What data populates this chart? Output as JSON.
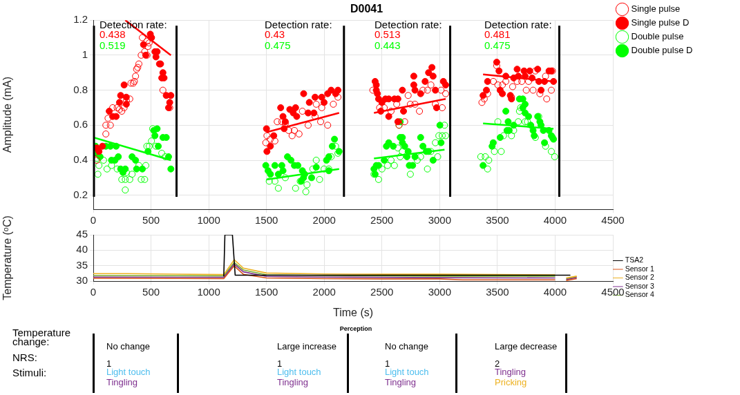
{
  "chart_data": [
    {
      "type": "scatter",
      "title": "D0041",
      "ylabel": "Amplitude (mA)",
      "xlim": [
        0,
        4500
      ],
      "xticks": [
        0,
        500,
        1000,
        1500,
        2000,
        2500,
        3000,
        3500,
        4000,
        4500
      ],
      "ylim": [
        0.12,
        1.2
      ],
      "yticks": [
        0.2,
        0.4,
        0.6,
        0.8,
        1,
        1.2
      ],
      "grid": true,
      "legend": "top right",
      "series": [
        {
          "name": "Single pulse",
          "color": "#ff0000",
          "marker": "circle",
          "x": [
            10,
            30,
            109,
            148,
            109,
            128,
            168,
            207,
            227,
            267,
            247,
            287,
            316,
            326,
            346,
            356,
            366,
            375,
            385,
            395,
            415,
            445,
            425,
            465,
            484,
            474,
            504,
            603,
            662,
            465,
            1494,
            1504,
            1534,
            1573,
            1593,
            1633,
            1663,
            1692,
            1722,
            1742,
            1782,
            1811,
            1861,
            1921,
            1969,
            2030,
            1931,
            2079,
            2119,
            1979,
            2421,
            2480,
            2520,
            2579,
            2628,
            2697,
            2727,
            2746,
            2786,
            2825,
            2855,
            2894,
            2924,
            2963,
            3012,
            3022,
            3052,
            2648,
            3366,
            3386,
            3415,
            3465,
            3494,
            3504,
            3543,
            3573,
            3632,
            3671,
            3711,
            3750,
            3770,
            3809,
            3868,
            3927,
            3917,
            3967,
            3977,
            3622,
            3829
          ],
          "values": [
            0.44,
            0.4,
            0.6,
            0.6,
            0.55,
            0.64,
            0.7,
            0.7,
            0.69,
            0.7,
            0.68,
            0.74,
            0.75,
            0.84,
            0.84,
            0.85,
            0.88,
            0.92,
            0.93,
            0.95,
            1.0,
            1.02,
            1.1,
            1.08,
            1.07,
            1.05,
            1.1,
            0.8,
            0.7,
            1.0,
            0.5,
            0.54,
            0.52,
            0.51,
            0.62,
            0.62,
            0.61,
            0.57,
            0.54,
            0.57,
            0.55,
            0.68,
            0.6,
            0.65,
            0.62,
            0.6,
            0.72,
            0.72,
            0.76,
            0.7,
            0.8,
            0.7,
            0.7,
            0.68,
            0.72,
            0.62,
            0.77,
            0.72,
            0.72,
            0.68,
            0.8,
            0.8,
            0.83,
            0.72,
            0.8,
            0.7,
            0.78,
            0.6,
            0.73,
            0.75,
            0.78,
            0.85,
            0.94,
            0.83,
            0.83,
            0.85,
            0.82,
            0.85,
            0.85,
            0.8,
            0.85,
            0.8,
            0.78,
            0.75,
            0.88,
            0.8,
            0.91,
            0.76,
            0.91
          ]
        },
        {
          "name": "Single pulse D",
          "color": "#ff0000",
          "marker": "circle",
          "x": [
            267,
            237,
            227,
            286,
            286,
            138,
            168,
            198,
            49,
            30,
            79,
            435,
            494,
            504,
            454,
            534,
            553,
            543,
            573,
            583,
            603,
            593,
            613,
            632,
            672,
            662,
            652,
            1500,
            1504,
            1534,
            1563,
            1623,
            1643,
            1663,
            1653,
            1702,
            1732,
            1752,
            1762,
            1822,
            1861,
            1871,
            1911,
            1921,
            1979,
            1999,
            2030,
            2060,
            2119,
            2099,
            2441,
            2451,
            2451,
            2461,
            2471,
            2500,
            2530,
            2559,
            2608,
            2638,
            2559,
            2490,
            2687,
            2677,
            2776,
            2776,
            2786,
            2835,
            2874,
            2904,
            2933,
            2943,
            2963,
            2973,
            3032,
            3052,
            2638,
            3376,
            3405,
            3415,
            3494,
            3514,
            3524,
            3543,
            3612,
            3622,
            3671,
            3681,
            3731,
            3740,
            3780,
            3800,
            3849,
            3859,
            3878,
            3908,
            3947,
            3967,
            3986,
            3573,
            3641
          ],
          "values": [
            0.83,
            0.77,
            0.73,
            0.76,
            0.72,
            0.68,
            0.65,
            0.65,
            0.45,
            0.47,
            0.48,
            1.06,
            1.12,
            1.1,
            1.0,
            1.02,
            1.02,
            0.99,
            0.95,
            0.95,
            0.9,
            0.87,
            0.87,
            0.77,
            0.77,
            0.73,
            0.7,
            0.58,
            0.45,
            0.48,
            0.54,
            0.7,
            0.65,
            0.62,
            0.58,
            0.69,
            0.67,
            0.7,
            0.65,
            0.78,
            0.67,
            0.73,
            0.67,
            0.76,
            0.76,
            0.73,
            0.78,
            0.8,
            0.8,
            0.78,
            0.85,
            0.83,
            0.8,
            0.78,
            0.75,
            0.73,
            0.75,
            0.75,
            0.75,
            0.75,
            0.65,
            0.68,
            0.68,
            0.8,
            0.83,
            0.88,
            0.8,
            0.78,
            0.85,
            0.9,
            0.93,
            0.88,
            0.8,
            0.7,
            0.85,
            0.83,
            0.62,
            0.77,
            0.8,
            0.85,
            0.96,
            0.91,
            0.8,
            0.78,
            0.77,
            0.75,
            0.92,
            0.88,
            0.91,
            0.88,
            0.91,
            0.87,
            0.92,
            0.85,
            0.8,
            0.85,
            0.91,
            0.91,
            0.85,
            0.88,
            0.87
          ]
        },
        {
          "name": "Double pulse",
          "color": "#00ff00",
          "marker": "circle",
          "x": [
            30,
            49,
            40,
            89,
            119,
            158,
            207,
            247,
            277,
            316,
            336,
            395,
            415,
            445,
            455,
            464,
            484,
            504,
            514,
            543,
            593,
            623,
            277,
            287,
            1524,
            1573,
            1603,
            1663,
            1752,
            1792,
            1841,
            1851,
            1901,
            1960,
            1999,
            2040,
            1931,
            2099,
            2119,
            2060,
            2431,
            2471,
            2500,
            2549,
            2579,
            2608,
            2638,
            2658,
            2677,
            2746,
            2806,
            2835,
            2894,
            2924,
            2963,
            2983,
            2993,
            3022,
            3052,
            3042,
            2648,
            3356,
            3395,
            3425,
            3415,
            3474,
            3533,
            3553,
            3622,
            3641,
            3681,
            3691,
            3701,
            3740,
            3760,
            3829,
            3858,
            3917,
            3967,
            3996,
            3504
          ],
          "values": [
            0.41,
            0.37,
            0.32,
            0.4,
            0.35,
            0.37,
            0.35,
            0.29,
            0.29,
            0.29,
            0.32,
            0.37,
            0.29,
            0.29,
            0.37,
            0.48,
            0.48,
            0.51,
            0.58,
            0.48,
            0.44,
            0.42,
            0.23,
            0.33,
            0.28,
            0.28,
            0.24,
            0.3,
            0.24,
            0.28,
            0.22,
            0.26,
            0.35,
            0.29,
            0.35,
            0.35,
            0.4,
            0.48,
            0.44,
            0.42,
            0.32,
            0.29,
            0.35,
            0.37,
            0.4,
            0.37,
            0.47,
            0.42,
            0.45,
            0.32,
            0.4,
            0.42,
            0.35,
            0.45,
            0.5,
            0.42,
            0.54,
            0.54,
            0.54,
            0.6,
            0.6,
            0.42,
            0.42,
            0.4,
            0.35,
            0.45,
            0.45,
            0.54,
            0.54,
            0.57,
            0.62,
            0.68,
            0.7,
            0.62,
            0.62,
            0.53,
            0.65,
            0.48,
            0.45,
            0.42,
            0.62
          ]
        },
        {
          "name": "Double pulse D",
          "color": "#00ff00",
          "marker": "circle",
          "x": [
            20,
            30,
            59,
            109,
            148,
            198,
            158,
            188,
            217,
            237,
            257,
            277,
            336,
            366,
            375,
            425,
            474,
            534,
            553,
            563,
            603,
            632,
            652,
            672,
            524,
            1494,
            1514,
            1534,
            1573,
            1603,
            1633,
            1643,
            1682,
            1712,
            1742,
            1772,
            1811,
            1831,
            1801,
            1821,
            1891,
            1931,
            2020,
            2040,
            2070,
            2089,
            2129,
            2040,
            2431,
            2441,
            2451,
            2471,
            2520,
            2539,
            2559,
            2598,
            2658,
            2677,
            2677,
            2697,
            2727,
            2717,
            2737,
            2766,
            2786,
            2835,
            2855,
            2884,
            2904,
            2943,
            3002,
            3012,
            2658,
            3376,
            3454,
            3464,
            3524,
            3573,
            3593,
            3583,
            3602,
            3691,
            3720,
            3740,
            3720,
            3740,
            3770,
            3789,
            3809,
            3819,
            3849,
            3868,
            3878,
            3898,
            3908,
            3947,
            3967,
            3977,
            3986,
            3641
          ],
          "values": [
            0.48,
            0.44,
            0.42,
            0.48,
            0.48,
            0.48,
            0.4,
            0.4,
            0.42,
            0.35,
            0.33,
            0.35,
            0.42,
            0.4,
            0.35,
            0.35,
            0.45,
            0.54,
            0.58,
            0.48,
            0.53,
            0.53,
            0.42,
            0.35,
            0.57,
            0.37,
            0.34,
            0.32,
            0.37,
            0.32,
            0.37,
            0.34,
            0.42,
            0.4,
            0.37,
            0.37,
            0.34,
            0.32,
            0.28,
            0.3,
            0.3,
            0.36,
            0.4,
            0.42,
            0.48,
            0.52,
            0.45,
            0.34,
            0.35,
            0.32,
            0.37,
            0.37,
            0.4,
            0.48,
            0.5,
            0.48,
            0.53,
            0.53,
            0.5,
            0.48,
            0.45,
            0.42,
            0.37,
            0.37,
            0.42,
            0.53,
            0.48,
            0.45,
            0.45,
            0.4,
            0.6,
            0.5,
            0.62,
            0.37,
            0.48,
            0.5,
            0.53,
            0.68,
            0.62,
            0.57,
            0.57,
            0.75,
            0.75,
            0.72,
            0.7,
            0.67,
            0.65,
            0.6,
            0.57,
            0.54,
            0.65,
            0.62,
            0.6,
            0.57,
            0.5,
            0.57,
            0.54,
            0.53,
            0.52,
            0.6
          ]
        },
        {
          "type": "line",
          "color": "#ff0000",
          "marker": "none",
          "x": [
            277,
            672
          ],
          "values": [
            1.2,
            1.0
          ]
        },
        {
          "type": "line",
          "color": "#00ff00",
          "marker": "none",
          "x": [
            0,
            672
          ],
          "values": [
            0.53,
            0.4
          ]
        },
        {
          "type": "line",
          "color": "#ff0000",
          "marker": "none",
          "x": [
            1500,
            2129
          ],
          "values": [
            0.56,
            0.67
          ]
        },
        {
          "type": "line",
          "color": "#00ff00",
          "marker": "none",
          "x": [
            1500,
            2129
          ],
          "values": [
            0.29,
            0.35
          ]
        },
        {
          "type": "line",
          "color": "#ff0000",
          "marker": "none",
          "x": [
            2431,
            3052
          ],
          "values": [
            0.67,
            0.75
          ]
        },
        {
          "type": "line",
          "color": "#00ff00",
          "marker": "none",
          "x": [
            2431,
            3042
          ],
          "values": [
            0.41,
            0.46
          ]
        },
        {
          "type": "line",
          "color": "#ff0000",
          "marker": "none",
          "x": [
            3376,
            3986
          ],
          "values": [
            0.89,
            0.85
          ]
        },
        {
          "type": "line",
          "color": "#00ff00",
          "marker": "none",
          "x": [
            3376,
            3986
          ],
          "values": [
            0.61,
            0.58
          ]
        }
      ],
      "ref_lines": [
        {
          "axis": "x",
          "value": 0,
          "color": "#000000"
        },
        {
          "axis": "x",
          "value": 715,
          "color": "#000000"
        },
        {
          "axis": "x",
          "value": 2165,
          "color": "#000000"
        },
        {
          "axis": "x",
          "value": 3085,
          "color": "#000000"
        },
        {
          "axis": "x",
          "value": 4030,
          "color": "#000000"
        }
      ],
      "annotations": [
        "Detection rate:",
        "0.438",
        "0.519",
        "Detection rate:",
        "0.43",
        "0.475",
        "Detection rate:",
        "0.513",
        "0.443",
        "Detection rate:",
        "0.481",
        "0.475"
      ]
    },
    {
      "type": "line",
      "xlabel": "Time (s)",
      "ylabel": "Temperature (ᵒC)",
      "xlim": [
        0,
        4500
      ],
      "xticks": [
        0,
        500,
        1000,
        1500,
        2000,
        2500,
        3000,
        3500,
        4000,
        4500
      ],
      "ylim": [
        30,
        45
      ],
      "yticks": [
        30,
        35,
        40,
        45
      ],
      "grid": true,
      "legend": "right",
      "marker": "none",
      "series": [
        {
          "name": "TSA2",
          "color": "#000000",
          "x": [
            1130,
            1140,
            1205,
            1229,
            4132
          ],
          "values": [
            31.5,
            45,
            45,
            31.9,
            31.9
          ]
        },
        {
          "name": "Sensor 1",
          "color": "#d95319",
          "x": [
            0,
            1130,
            1220,
            1300,
            1500,
            2000,
            2500,
            3000,
            3200,
            4000,
            4010,
            4096,
            4187
          ],
          "values": [
            30.9,
            30.8,
            34.9,
            32.2,
            31.0,
            30.8,
            30.7,
            30.7,
            30.4,
            30.4,
            null,
            30.2,
            30.8
          ]
        },
        {
          "name": "Sensor 2",
          "color": "#edb120",
          "x": [
            0,
            300,
            1130,
            1220,
            1300,
            1500,
            2000,
            2500,
            3000,
            4000,
            4010,
            4096,
            4187
          ],
          "values": [
            32.4,
            32.4,
            32.1,
            36.9,
            34.2,
            32.6,
            32.3,
            32.2,
            32.2,
            32.0,
            null,
            31.0,
            31.6
          ]
        },
        {
          "name": "Sensor 3",
          "color": "#7e2f8e",
          "x": [
            0,
            1130,
            1220,
            1300,
            1500,
            2000,
            2500,
            3000,
            4000,
            4010,
            4096,
            4187
          ],
          "values": [
            31.3,
            31.2,
            35.5,
            33.0,
            31.5,
            31.3,
            31.2,
            31.1,
            31.0,
            null,
            30.5,
            31.1
          ]
        },
        {
          "name": "Sensor 4",
          "color": "#77ac30",
          "x": [
            0,
            1130,
            1220,
            1300,
            1500,
            2000,
            2500,
            3000,
            4000,
            4010,
            4096,
            4187
          ],
          "values": [
            31.8,
            31.7,
            36.0,
            33.6,
            32.0,
            31.8,
            31.7,
            31.6,
            31.6,
            null,
            30.8,
            31.4
          ]
        }
      ]
    },
    {
      "type": "other",
      "title": "Perception",
      "annotations": [
        "Temperature change:",
        "NRS:",
        "Stimuli:",
        "No change",
        "1",
        "Light touch",
        "Tingling",
        "Large increase",
        "1",
        "Light touch",
        "Tingling",
        "No change",
        "1",
        "Light touch",
        "Tingling",
        "Large decrease",
        "2",
        "Tingling",
        "Pricking"
      ]
    }
  ]
}
